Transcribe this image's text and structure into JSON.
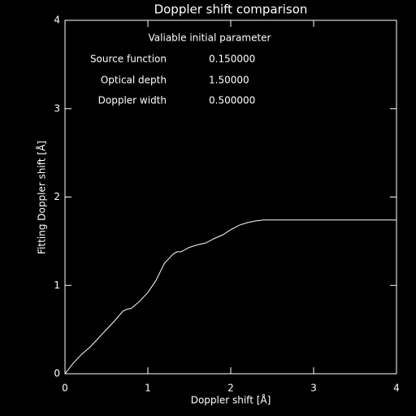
{
  "chart_data": {
    "type": "line",
    "title": "Doppler shift comparison",
    "x_label": "Doppler shift [Å]",
    "y_label": "Fitting Doppler shift [Å]",
    "annotations": {
      "heading": "Valiable initial parameter",
      "parameters": [
        {
          "name": "Source function",
          "value": "0.150000"
        },
        {
          "name": "Optical depth",
          "value": "1.50000"
        },
        {
          "name": "Doppler width",
          "value": "0.500000"
        }
      ]
    },
    "x": [
      0,
      0.1,
      0.2,
      0.3,
      0.4,
      0.5,
      0.6,
      0.7,
      0.75,
      0.8,
      0.9,
      1.0,
      1.1,
      1.2,
      1.3,
      1.35,
      1.4,
      1.5,
      1.6,
      1.7,
      1.8,
      1.9,
      2.0,
      2.1,
      2.2,
      2.3,
      2.4,
      3.0,
      4.0
    ],
    "series": [
      {
        "color": "#ffffff",
        "values": [
          0,
          0.12,
          0.22,
          0.3,
          0.4,
          0.5,
          0.6,
          0.71,
          0.73,
          0.74,
          0.82,
          0.92,
          1.06,
          1.25,
          1.35,
          1.38,
          1.38,
          1.43,
          1.46,
          1.48,
          1.53,
          1.57,
          1.63,
          1.68,
          1.71,
          1.73,
          1.74,
          1.74,
          1.74
        ]
      }
    ],
    "xlim": [
      0,
      4
    ],
    "ylim": [
      0,
      4
    ],
    "xticks": [
      0,
      1,
      2,
      3,
      4
    ],
    "yticks": [
      0,
      1,
      2,
      3,
      4
    ]
  }
}
